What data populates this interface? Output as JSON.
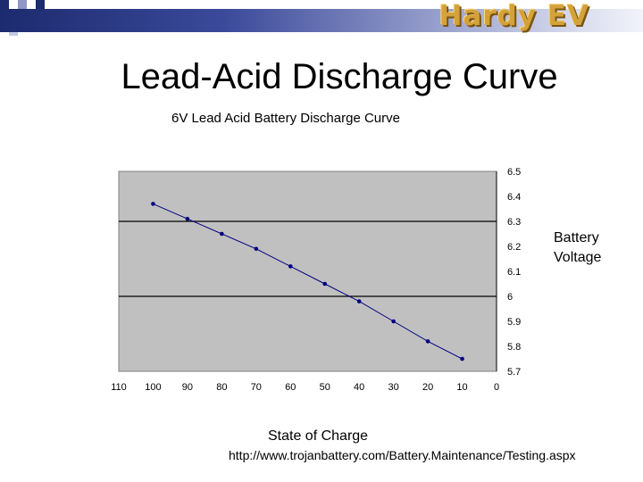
{
  "slide": {
    "title": "Lead-Acid Discharge Curve",
    "logo_text": "Hardy EV",
    "source": "http://www.trojanbattery.com/Battery.Maintenance/Testing.aspx"
  },
  "colors": {
    "plot_bg": "#c0c0c0",
    "series": "#000080",
    "gridline": "#000000",
    "logo": "#d4a23a"
  },
  "chart_data": {
    "type": "line",
    "title": "6V Lead Acid Battery Discharge Curve",
    "xlabel": "State of Charge",
    "ylabel": "Battery Voltage",
    "x_reversed": true,
    "y_axis_position": "right",
    "xlim": [
      0,
      110
    ],
    "ylim": [
      5.7,
      6.5
    ],
    "x_ticks": [
      "110",
      "100",
      "90",
      "80",
      "70",
      "60",
      "50",
      "40",
      "30",
      "20",
      "10",
      "0"
    ],
    "y_ticks": [
      "6.5",
      "6.4",
      "6.3",
      "6.2",
      "6.1",
      "6",
      "5.9",
      "5.8",
      "5.7"
    ],
    "grid": {
      "horizontal_major": [
        6.3,
        6.0
      ],
      "horizontal_step": 0.3
    },
    "series": [
      {
        "x": [
          100,
          90,
          80,
          70,
          60,
          50,
          40,
          30,
          20,
          10
        ],
        "y": [
          6.37,
          6.31,
          6.25,
          6.19,
          6.12,
          6.05,
          5.98,
          5.9,
          5.82,
          5.75
        ]
      }
    ]
  }
}
